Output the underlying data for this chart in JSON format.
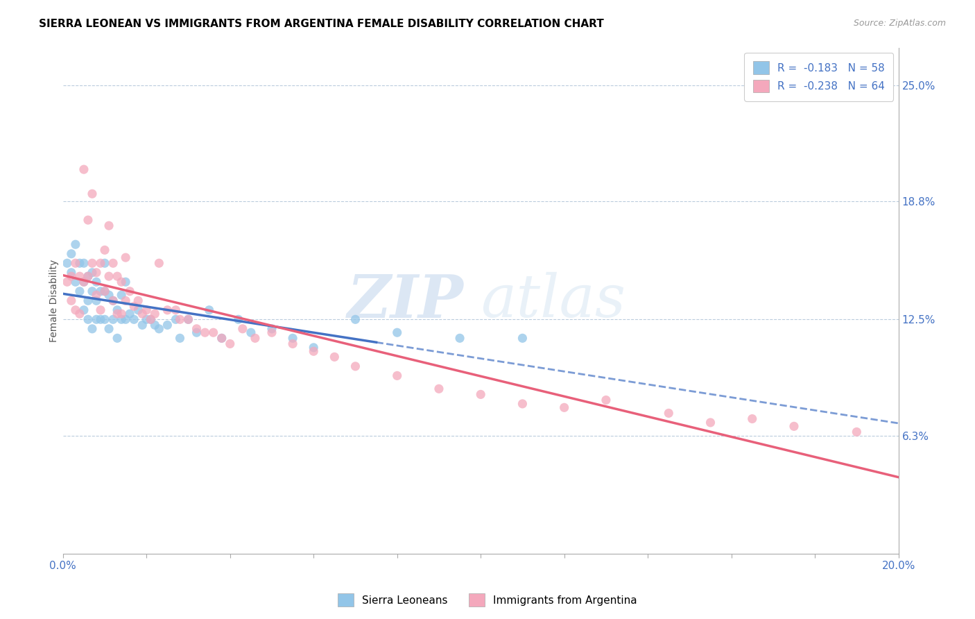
{
  "title": "SIERRA LEONEAN VS IMMIGRANTS FROM ARGENTINA FEMALE DISABILITY CORRELATION CHART",
  "source": "Source: ZipAtlas.com",
  "ylabel": "Female Disability",
  "right_yticks": [
    "25.0%",
    "18.8%",
    "12.5%",
    "6.3%"
  ],
  "right_ytick_values": [
    0.25,
    0.188,
    0.125,
    0.063
  ],
  "xmin": 0.0,
  "xmax": 0.2,
  "ymin": 0.0,
  "ymax": 0.27,
  "legend_line1": "R =  -0.183   N = 58",
  "legend_line2": "R =  -0.238   N = 64",
  "legend_label_blue": "Sierra Leoneans",
  "legend_label_pink": "Immigrants from Argentina",
  "color_blue": "#92C5E8",
  "color_pink": "#F4A8BC",
  "trendline_blue_color": "#4472C4",
  "trendline_pink_color": "#E8607A",
  "watermark_zip": "ZIP",
  "watermark_atlas": "atlas",
  "blue_scatter_x": [
    0.001,
    0.002,
    0.002,
    0.003,
    0.003,
    0.004,
    0.004,
    0.005,
    0.005,
    0.005,
    0.006,
    0.006,
    0.006,
    0.007,
    0.007,
    0.007,
    0.008,
    0.008,
    0.008,
    0.009,
    0.009,
    0.01,
    0.01,
    0.01,
    0.011,
    0.011,
    0.012,
    0.012,
    0.013,
    0.013,
    0.014,
    0.014,
    0.015,
    0.015,
    0.016,
    0.017,
    0.018,
    0.019,
    0.02,
    0.021,
    0.022,
    0.023,
    0.025,
    0.027,
    0.028,
    0.03,
    0.032,
    0.035,
    0.038,
    0.042,
    0.045,
    0.05,
    0.055,
    0.06,
    0.07,
    0.08,
    0.095,
    0.11
  ],
  "blue_scatter_y": [
    0.155,
    0.16,
    0.15,
    0.165,
    0.145,
    0.155,
    0.14,
    0.155,
    0.145,
    0.13,
    0.148,
    0.135,
    0.125,
    0.15,
    0.14,
    0.12,
    0.145,
    0.135,
    0.125,
    0.14,
    0.125,
    0.155,
    0.14,
    0.125,
    0.138,
    0.12,
    0.135,
    0.125,
    0.13,
    0.115,
    0.138,
    0.125,
    0.145,
    0.125,
    0.128,
    0.125,
    0.13,
    0.122,
    0.125,
    0.125,
    0.122,
    0.12,
    0.122,
    0.125,
    0.115,
    0.125,
    0.118,
    0.13,
    0.115,
    0.125,
    0.118,
    0.12,
    0.115,
    0.11,
    0.125,
    0.118,
    0.115,
    0.115
  ],
  "pink_scatter_x": [
    0.001,
    0.002,
    0.002,
    0.003,
    0.003,
    0.004,
    0.004,
    0.005,
    0.005,
    0.006,
    0.006,
    0.007,
    0.007,
    0.008,
    0.008,
    0.009,
    0.009,
    0.01,
    0.01,
    0.011,
    0.011,
    0.012,
    0.012,
    0.013,
    0.013,
    0.014,
    0.014,
    0.015,
    0.015,
    0.016,
    0.017,
    0.018,
    0.019,
    0.02,
    0.021,
    0.022,
    0.023,
    0.025,
    0.027,
    0.028,
    0.03,
    0.032,
    0.034,
    0.036,
    0.038,
    0.04,
    0.043,
    0.046,
    0.05,
    0.055,
    0.06,
    0.065,
    0.07,
    0.08,
    0.09,
    0.1,
    0.11,
    0.12,
    0.13,
    0.145,
    0.155,
    0.165,
    0.175,
    0.19
  ],
  "pink_scatter_y": [
    0.145,
    0.148,
    0.135,
    0.155,
    0.13,
    0.148,
    0.128,
    0.205,
    0.145,
    0.178,
    0.148,
    0.192,
    0.155,
    0.15,
    0.138,
    0.155,
    0.13,
    0.162,
    0.14,
    0.175,
    0.148,
    0.155,
    0.135,
    0.148,
    0.128,
    0.145,
    0.128,
    0.158,
    0.135,
    0.14,
    0.132,
    0.135,
    0.128,
    0.13,
    0.125,
    0.128,
    0.155,
    0.13,
    0.13,
    0.125,
    0.125,
    0.12,
    0.118,
    0.118,
    0.115,
    0.112,
    0.12,
    0.115,
    0.118,
    0.112,
    0.108,
    0.105,
    0.1,
    0.095,
    0.088,
    0.085,
    0.08,
    0.078,
    0.082,
    0.075,
    0.07,
    0.072,
    0.068,
    0.065
  ]
}
